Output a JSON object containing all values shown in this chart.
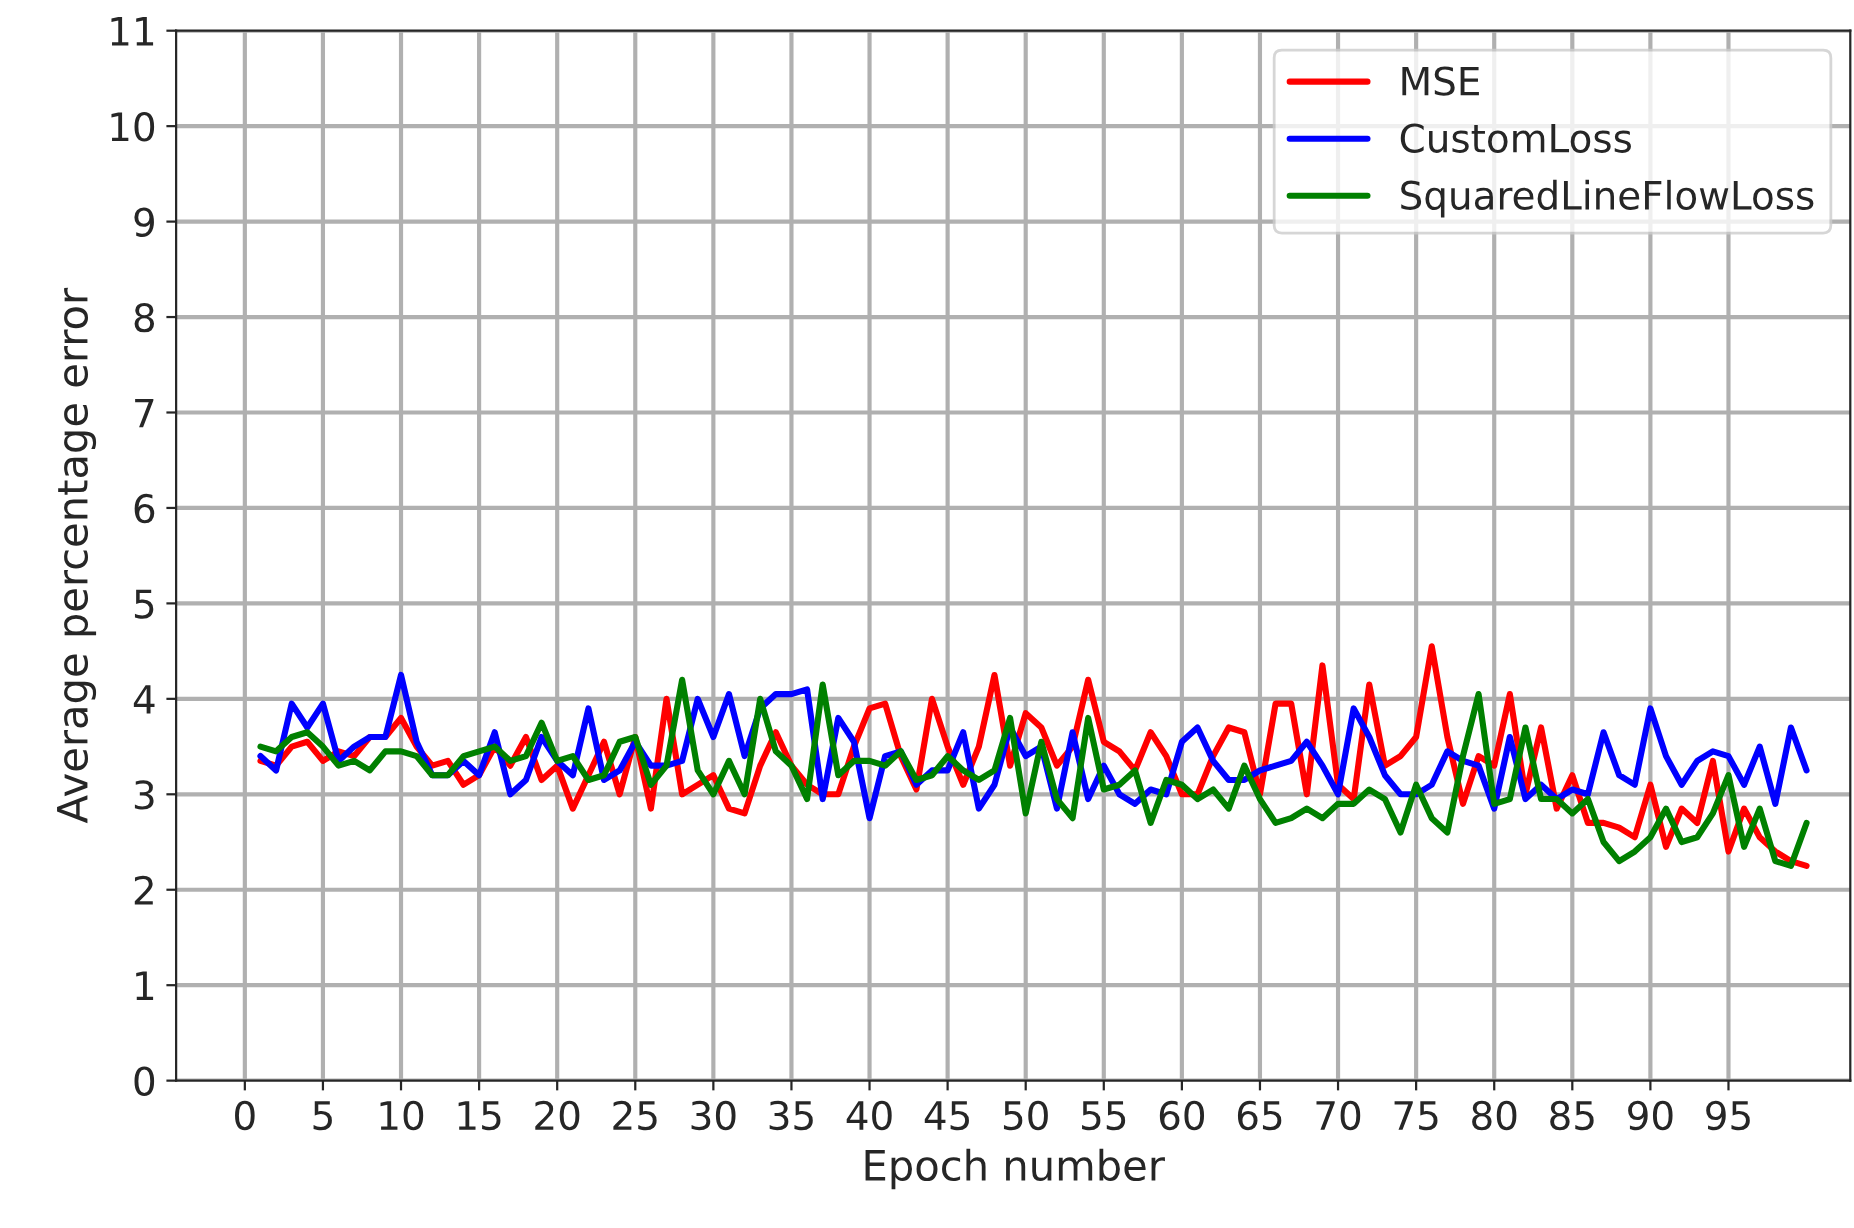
{
  "chart_data": {
    "type": "line",
    "xlabel": "Epoch number",
    "ylabel": "Average percentage error",
    "x": [
      1,
      2,
      3,
      4,
      5,
      6,
      7,
      8,
      9,
      10,
      11,
      12,
      13,
      14,
      15,
      16,
      17,
      18,
      19,
      20,
      21,
      22,
      23,
      24,
      25,
      26,
      27,
      28,
      29,
      30,
      31,
      32,
      33,
      34,
      35,
      36,
      37,
      38,
      39,
      40,
      41,
      42,
      43,
      44,
      45,
      46,
      47,
      48,
      49,
      50,
      51,
      52,
      53,
      54,
      55,
      56,
      57,
      58,
      59,
      60,
      61,
      62,
      63,
      64,
      65,
      66,
      67,
      68,
      69,
      70,
      71,
      72,
      73,
      74,
      75,
      76,
      77,
      78,
      79,
      80,
      81,
      82,
      83,
      84,
      85,
      86,
      87,
      88,
      89,
      90,
      91,
      92,
      93,
      94,
      95,
      96,
      97,
      98,
      99,
      100
    ],
    "series": [
      {
        "name": "MSE",
        "color": "#ff0000",
        "values": [
          3.35,
          3.3,
          3.5,
          3.55,
          3.35,
          3.45,
          3.4,
          3.6,
          3.6,
          3.8,
          3.5,
          3.3,
          3.35,
          3.1,
          3.2,
          3.5,
          3.3,
          3.6,
          3.15,
          3.3,
          2.85,
          3.2,
          3.55,
          3.0,
          3.6,
          2.85,
          4.0,
          3.0,
          3.1,
          3.2,
          2.85,
          2.8,
          3.3,
          3.65,
          3.3,
          3.1,
          3.0,
          3.0,
          3.5,
          3.9,
          3.95,
          3.4,
          3.05,
          4.0,
          3.5,
          3.1,
          3.5,
          4.25,
          3.3,
          3.85,
          3.7,
          3.3,
          3.5,
          4.2,
          3.55,
          3.45,
          3.25,
          3.65,
          3.4,
          3.0,
          3.0,
          3.4,
          3.7,
          3.65,
          3.0,
          3.95,
          3.95,
          3.0,
          4.35,
          3.1,
          2.95,
          4.15,
          3.3,
          3.4,
          3.6,
          4.55,
          3.6,
          2.9,
          3.4,
          3.3,
          4.05,
          3.0,
          3.7,
          2.85,
          3.2,
          2.7,
          2.7,
          2.65,
          2.55,
          3.1,
          2.45,
          2.85,
          2.7,
          3.35,
          2.4,
          2.85,
          2.55,
          2.4,
          2.3,
          2.25
        ]
      },
      {
        "name": "CustomLoss",
        "color": "#0000ff",
        "values": [
          3.4,
          3.25,
          3.95,
          3.7,
          3.95,
          3.35,
          3.5,
          3.6,
          3.6,
          4.25,
          3.55,
          3.2,
          3.2,
          3.35,
          3.2,
          3.65,
          3.0,
          3.15,
          3.6,
          3.35,
          3.2,
          3.9,
          3.15,
          3.25,
          3.55,
          3.3,
          3.3,
          3.35,
          4.0,
          3.6,
          4.05,
          3.4,
          3.9,
          4.05,
          4.05,
          4.1,
          2.95,
          3.8,
          3.55,
          2.75,
          3.4,
          3.45,
          3.1,
          3.25,
          3.25,
          3.65,
          2.85,
          3.1,
          3.7,
          3.4,
          3.5,
          2.85,
          3.65,
          2.95,
          3.3,
          3.0,
          2.9,
          3.05,
          3.0,
          3.55,
          3.7,
          3.35,
          3.15,
          3.15,
          3.25,
          3.3,
          3.35,
          3.55,
          3.3,
          3.0,
          3.9,
          3.6,
          3.2,
          3.0,
          3.0,
          3.1,
          3.45,
          3.35,
          3.3,
          2.85,
          3.6,
          2.95,
          3.1,
          2.95,
          3.05,
          3.0,
          3.65,
          3.2,
          3.1,
          3.9,
          3.4,
          3.1,
          3.35,
          3.45,
          3.4,
          3.1,
          3.5,
          2.9,
          3.7,
          3.25
        ]
      },
      {
        "name": "SquaredLineFlowLoss",
        "color": "#008000",
        "values": [
          3.5,
          3.45,
          3.6,
          3.65,
          3.5,
          3.3,
          3.35,
          3.25,
          3.45,
          3.45,
          3.4,
          3.2,
          3.2,
          3.4,
          3.45,
          3.5,
          3.35,
          3.4,
          3.75,
          3.35,
          3.4,
          3.15,
          3.2,
          3.55,
          3.6,
          3.1,
          3.3,
          4.2,
          3.25,
          3.0,
          3.35,
          3.0,
          4.0,
          3.45,
          3.3,
          2.95,
          4.15,
          3.2,
          3.35,
          3.35,
          3.3,
          3.45,
          3.15,
          3.2,
          3.4,
          3.25,
          3.15,
          3.25,
          3.8,
          2.8,
          3.55,
          2.95,
          2.75,
          3.8,
          3.05,
          3.1,
          3.25,
          2.7,
          3.15,
          3.1,
          2.95,
          3.05,
          2.85,
          3.3,
          2.95,
          2.7,
          2.75,
          2.85,
          2.75,
          2.9,
          2.9,
          3.05,
          2.95,
          2.6,
          3.1,
          2.75,
          2.6,
          3.4,
          4.05,
          2.9,
          2.95,
          3.7,
          2.95,
          2.95,
          2.8,
          2.95,
          2.5,
          2.3,
          2.4,
          2.55,
          2.85,
          2.5,
          2.55,
          2.8,
          3.2,
          2.45,
          2.85,
          2.3,
          2.25,
          2.7
        ]
      }
    ],
    "xlim": [
      -4.4,
      102.8
    ],
    "xticks": [
      0,
      5,
      10,
      15,
      20,
      25,
      30,
      35,
      40,
      45,
      50,
      55,
      60,
      65,
      70,
      75,
      80,
      85,
      90,
      95
    ],
    "ylim": [
      0,
      11
    ],
    "yticks": [
      0,
      1,
      2,
      3,
      4,
      5,
      6,
      7,
      8,
      9,
      10,
      11
    ],
    "grid": true,
    "legend": "top right",
    "line_style": "solid",
    "marker": "none"
  }
}
